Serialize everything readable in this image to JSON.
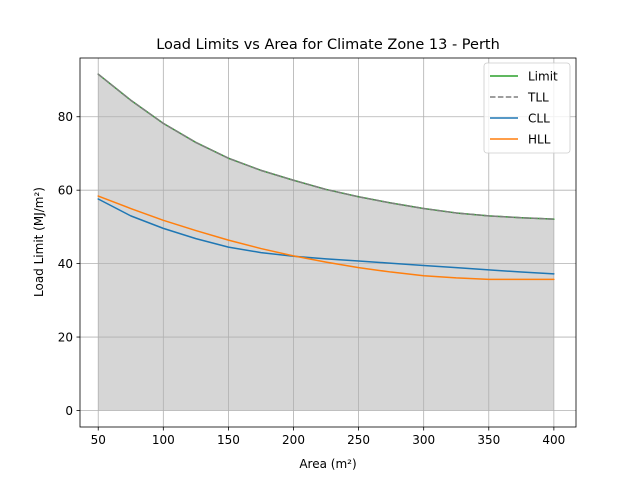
{
  "chart_data": {
    "type": "line",
    "title": "Load Limits vs Area for Climate Zone 13 - Perth",
    "xlabel": "Area (m²)",
    "ylabel": "Load Limit (MJ/m²)",
    "xlim": [
      36,
      417
    ],
    "ylim": [
      -4.5,
      96
    ],
    "x_ticks": [
      50,
      100,
      150,
      200,
      250,
      300,
      350,
      400
    ],
    "y_ticks": [
      0,
      20,
      40,
      60,
      80
    ],
    "x_tick_labels": [
      "50",
      "100",
      "150",
      "200",
      "250",
      "300",
      "350",
      "400"
    ],
    "y_tick_labels": [
      "0",
      "20",
      "40",
      "60",
      "80"
    ],
    "grid": true,
    "legend_position": "top-right",
    "fill": {
      "between_series": "Limit",
      "baseline": 0,
      "color": "#d6d6d6"
    },
    "x": [
      50,
      75,
      100,
      125,
      150,
      175,
      200,
      225,
      250,
      275,
      300,
      325,
      350,
      375,
      400
    ],
    "series": [
      {
        "name": "Limit",
        "color": "#2ca02c",
        "style": "solid",
        "values": [
          91.6,
          84.5,
          78.2,
          73.0,
          68.7,
          65.4,
          62.7,
          60.2,
          58.2,
          56.5,
          55.0,
          53.8,
          53.0,
          52.5,
          52.1
        ]
      },
      {
        "name": "TLL",
        "color": "#7f7f7f",
        "style": "dashed",
        "values": [
          91.6,
          84.5,
          78.2,
          73.0,
          68.7,
          65.4,
          62.7,
          60.2,
          58.2,
          56.5,
          55.0,
          53.8,
          53.0,
          52.5,
          52.1
        ]
      },
      {
        "name": "CLL",
        "color": "#1f77b4",
        "style": "solid",
        "values": [
          57.6,
          53.0,
          49.6,
          46.8,
          44.5,
          43.0,
          42.0,
          41.3,
          40.7,
          40.1,
          39.5,
          38.9,
          38.3,
          37.7,
          37.2
        ]
      },
      {
        "name": "HLL",
        "color": "#ff7f0e",
        "style": "solid",
        "values": [
          58.4,
          55.0,
          51.8,
          49.0,
          46.4,
          44.1,
          42.1,
          40.4,
          38.9,
          37.7,
          36.7,
          36.1,
          35.7,
          35.7,
          35.7
        ]
      }
    ]
  }
}
